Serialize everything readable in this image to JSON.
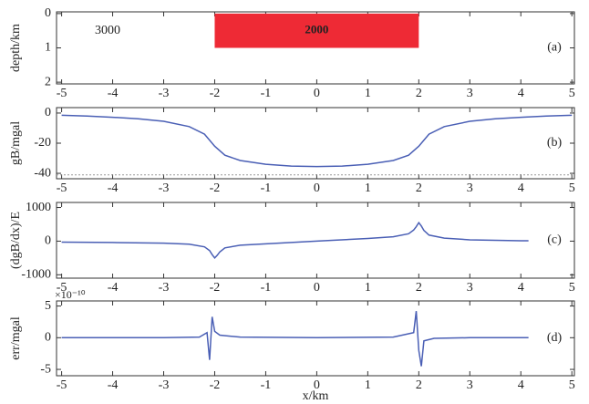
{
  "chart_data": [
    {
      "type": "block",
      "panel_label": "(a)",
      "y_label": "depth/km",
      "background_label": "3000",
      "xlim": [
        -5.1,
        5.05
      ],
      "xticks": [
        -5,
        -4,
        -3,
        -2,
        -1,
        0,
        1,
        2,
        3,
        4,
        5
      ],
      "ylim": [
        2.05,
        -0.05
      ],
      "yticks": [
        0,
        1,
        2
      ],
      "block": {
        "x": [
          -2,
          2
        ],
        "depth": [
          0,
          1
        ],
        "label": "2000",
        "color": "#ee2a35"
      }
    },
    {
      "type": "line",
      "panel_label": "(b)",
      "y_label": "gB/mgal",
      "color": "#4a5fb5",
      "xlim": [
        -5.1,
        5.05
      ],
      "xticks": [
        -5,
        -4,
        -3,
        -2,
        -1,
        0,
        1,
        2,
        3,
        4,
        5
      ],
      "ylim": [
        -43.6,
        3.6
      ],
      "yticks": [
        -40,
        -20,
        0
      ],
      "hline": -41,
      "x": [
        -5,
        -4.5,
        -4,
        -3.5,
        -3,
        -2.5,
        -2.2,
        -2,
        -1.8,
        -1.5,
        -1,
        -0.5,
        0,
        0.5,
        1,
        1.5,
        1.8,
        2,
        2.2,
        2.5,
        3,
        3.5,
        4,
        4.5,
        5
      ],
      "values": [
        -1.5,
        -2,
        -2.8,
        -3.8,
        -5.5,
        -9,
        -14,
        -22,
        -28,
        -31.5,
        -34,
        -35.2,
        -35.5,
        -35.2,
        -34,
        -31.5,
        -28,
        -22,
        -14,
        -9,
        -5.5,
        -3.8,
        -2.8,
        -2,
        -1.5
      ]
    },
    {
      "type": "line",
      "panel_label": "(c)",
      "y_label": "(dgB/dx)/E",
      "color": "#4a5fb5",
      "xlim": [
        -5.1,
        5.05
      ],
      "xticks": [
        -5,
        -4,
        -3,
        -2,
        -1,
        0,
        1,
        2,
        3,
        4,
        5
      ],
      "ylim": [
        -1100,
        1150
      ],
      "yticks": [
        -1000,
        0,
        1000
      ],
      "x": [
        -5,
        -4,
        -3,
        -2.5,
        -2.2,
        -2.1,
        -2.05,
        -2,
        -1.95,
        -1.9,
        -1.8,
        -1.5,
        -1,
        0,
        1,
        1.5,
        1.8,
        1.9,
        1.95,
        2,
        2.05,
        2.1,
        2.2,
        2.5,
        3,
        4,
        4.15
      ],
      "values": [
        -30,
        -40,
        -60,
        -90,
        -170,
        -280,
        -400,
        -500,
        -420,
        -320,
        -200,
        -120,
        -80,
        0,
        80,
        130,
        220,
        330,
        430,
        550,
        450,
        320,
        180,
        90,
        40,
        10,
        10
      ]
    },
    {
      "type": "line",
      "panel_label": "(d)",
      "y_label": "err/mgal",
      "multiplier": "×10⁻¹⁰",
      "x_label": "x/km",
      "color": "#4a5fb5",
      "xlim": [
        -5.1,
        5.05
      ],
      "xticks": [
        -5,
        -4,
        -3,
        -2,
        -1,
        0,
        1,
        2,
        3,
        4,
        5
      ],
      "ylim": [
        -6,
        5.8
      ],
      "yticks": [
        -5,
        0,
        5
      ],
      "x": [
        -5,
        -3,
        -2.3,
        -2.15,
        -2.1,
        -2.05,
        -2,
        -1.9,
        -1.5,
        0,
        1.5,
        1.9,
        1.95,
        2,
        2.05,
        2.1,
        2.3,
        3,
        4.15
      ],
      "values": [
        0,
        0,
        0.1,
        0.8,
        -3.5,
        3.3,
        1,
        0.4,
        0.1,
        0,
        0.1,
        0.8,
        4.2,
        -2,
        -4.5,
        -0.5,
        -0.1,
        0,
        0
      ]
    }
  ]
}
